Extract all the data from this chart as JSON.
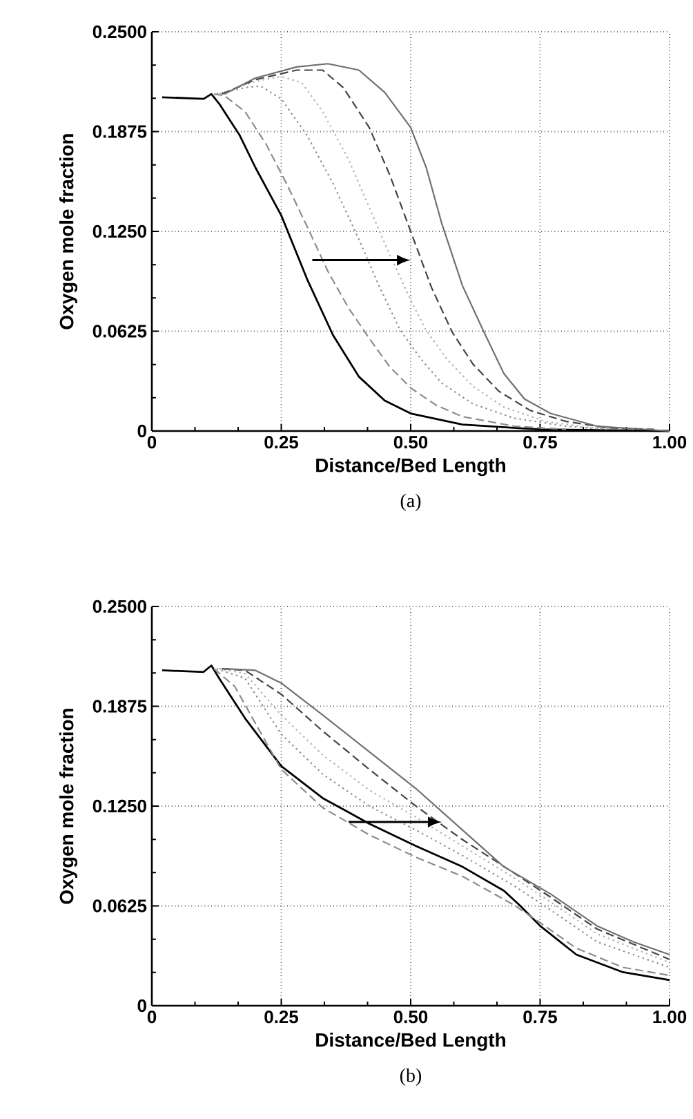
{
  "chart_data": [
    {
      "type": "line",
      "xlabel": "Distance/Bed Length",
      "ylabel": "Oxygen mole fraction",
      "annotations": [
        "(a)"
      ],
      "xlim": [
        0,
        1
      ],
      "ylim": [
        0,
        0.25
      ],
      "xticks": [
        0,
        {
          "value": 0.25,
          "label": "0.25"
        },
        {
          "value": 0.5,
          "label": "0.50"
        },
        {
          "value": 0.75,
          "label": "0.75"
        },
        {
          "value": 1,
          "label": "1.00"
        }
      ],
      "yticks": [
        0,
        {
          "value": 0.0625,
          "label": "0.0625"
        },
        {
          "value": 0.125,
          "label": "0.1250"
        },
        {
          "value": 0.1875,
          "label": "0.1875"
        },
        {
          "value": 0.25,
          "label": "0.2500"
        }
      ],
      "grid": true,
      "marker": "none",
      "series": [
        {
          "color": "#000000",
          "line_style": "solid",
          "x": [
            0.02,
            0.1,
            0.115,
            0.13,
            0.17,
            0.2,
            0.25,
            0.3,
            0.35,
            0.4,
            0.45,
            0.5,
            0.6,
            0.75,
            1.0
          ],
          "values": [
            0.209,
            0.208,
            0.211,
            0.205,
            0.185,
            0.165,
            0.135,
            0.095,
            0.06,
            0.034,
            0.019,
            0.011,
            0.004,
            0.001,
            0
          ]
        },
        {
          "color": "#8c8c8c",
          "line_style": "dashed",
          "x": [
            0.12,
            0.14,
            0.18,
            0.22,
            0.26,
            0.3,
            0.34,
            0.38,
            0.42,
            0.46,
            0.5,
            0.55,
            0.6,
            0.7,
            0.8
          ],
          "values": [
            0.211,
            0.21,
            0.2,
            0.18,
            0.155,
            0.128,
            0.1,
            0.077,
            0.058,
            0.04,
            0.027,
            0.016,
            0.009,
            0.003,
            0.001
          ]
        },
        {
          "color": "#8c8c8c",
          "line_style": "dotted",
          "x": [
            0.125,
            0.18,
            0.21,
            0.25,
            0.3,
            0.35,
            0.4,
            0.44,
            0.48,
            0.52,
            0.56,
            0.62,
            0.7,
            0.8,
            0.88
          ],
          "values": [
            0.211,
            0.215,
            0.216,
            0.208,
            0.185,
            0.155,
            0.12,
            0.09,
            0.063,
            0.045,
            0.03,
            0.017,
            0.008,
            0.003,
            0.001
          ]
        },
        {
          "color": "#b0b0b0",
          "line_style": "dotted",
          "x": [
            0.13,
            0.2,
            0.25,
            0.29,
            0.33,
            0.38,
            0.42,
            0.46,
            0.5,
            0.53,
            0.57,
            0.62,
            0.68,
            0.76,
            0.85,
            0.94
          ],
          "values": [
            0.211,
            0.219,
            0.222,
            0.218,
            0.2,
            0.17,
            0.14,
            0.11,
            0.082,
            0.063,
            0.045,
            0.028,
            0.015,
            0.006,
            0.002,
            0.001
          ]
        },
        {
          "color": "#444444",
          "line_style": "dashed",
          "x": [
            0.135,
            0.2,
            0.28,
            0.33,
            0.37,
            0.42,
            0.46,
            0.5,
            0.54,
            0.58,
            0.62,
            0.67,
            0.73,
            0.8,
            0.88,
            0.97
          ],
          "values": [
            0.211,
            0.22,
            0.226,
            0.226,
            0.215,
            0.19,
            0.16,
            0.125,
            0.09,
            0.062,
            0.042,
            0.025,
            0.013,
            0.006,
            0.002,
            0.001
          ]
        },
        {
          "color": "#707070",
          "line_style": "solid",
          "x": [
            0.14,
            0.2,
            0.28,
            0.34,
            0.4,
            0.45,
            0.5,
            0.53,
            0.56,
            0.6,
            0.64,
            0.68,
            0.72,
            0.77,
            0.86,
            1.0
          ],
          "values": [
            0.211,
            0.221,
            0.228,
            0.23,
            0.226,
            0.212,
            0.19,
            0.165,
            0.13,
            0.091,
            0.063,
            0.036,
            0.02,
            0.011,
            0.003,
            0
          ]
        }
      ]
    },
    {
      "type": "line",
      "xlabel": "Distance/Bed Length",
      "ylabel": "Oxygen mole fraction",
      "annotations": [
        "(b)"
      ],
      "xlim": [
        0,
        1
      ],
      "ylim": [
        0,
        0.25
      ],
      "xticks": [
        0,
        {
          "value": 0.25,
          "label": "0.25"
        },
        {
          "value": 0.5,
          "label": "0.50"
        },
        {
          "value": 0.75,
          "label": "0.75"
        },
        {
          "value": 1,
          "label": "1.00"
        }
      ],
      "yticks": [
        0,
        {
          "value": 0.0625,
          "label": "0.0625"
        },
        {
          "value": 0.125,
          "label": "0.1250"
        },
        {
          "value": 0.1875,
          "label": "0.1875"
        },
        {
          "value": 0.25,
          "label": "0.2500"
        }
      ],
      "grid": true,
      "marker": "none",
      "series": [
        {
          "color": "#000000",
          "line_style": "solid",
          "x": [
            0.02,
            0.1,
            0.115,
            0.13,
            0.18,
            0.25,
            0.33,
            0.42,
            0.51,
            0.6,
            0.68,
            0.71,
            0.75,
            0.82,
            0.91,
            1.0
          ],
          "values": [
            0.21,
            0.209,
            0.213,
            0.205,
            0.18,
            0.15,
            0.13,
            0.114,
            0.1,
            0.087,
            0.072,
            0.063,
            0.05,
            0.032,
            0.021,
            0.016
          ]
        },
        {
          "color": "#8c8c8c",
          "line_style": "dashed",
          "x": [
            0.12,
            0.16,
            0.25,
            0.33,
            0.42,
            0.51,
            0.6,
            0.7,
            0.75,
            0.82,
            0.91,
            1.0
          ],
          "values": [
            0.211,
            0.2,
            0.148,
            0.124,
            0.107,
            0.093,
            0.081,
            0.063,
            0.052,
            0.036,
            0.024,
            0.019
          ]
        },
        {
          "color": "#8c8c8c",
          "line_style": "dotted",
          "x": [
            0.125,
            0.18,
            0.25,
            0.33,
            0.42,
            0.51,
            0.6,
            0.7,
            0.77,
            0.86,
            1.0
          ],
          "values": [
            0.211,
            0.205,
            0.17,
            0.145,
            0.125,
            0.11,
            0.094,
            0.075,
            0.06,
            0.04,
            0.024
          ]
        },
        {
          "color": "#b0b0b0",
          "line_style": "dotted",
          "x": [
            0.13,
            0.18,
            0.25,
            0.33,
            0.42,
            0.51,
            0.6,
            0.7,
            0.77,
            0.86,
            1.0
          ],
          "values": [
            0.211,
            0.208,
            0.182,
            0.157,
            0.135,
            0.118,
            0.1,
            0.08,
            0.065,
            0.045,
            0.027
          ]
        },
        {
          "color": "#444444",
          "line_style": "dashed",
          "x": [
            0.135,
            0.18,
            0.25,
            0.33,
            0.42,
            0.51,
            0.6,
            0.7,
            0.77,
            0.86,
            1.0
          ],
          "values": [
            0.211,
            0.21,
            0.195,
            0.172,
            0.148,
            0.125,
            0.104,
            0.083,
            0.068,
            0.048,
            0.029
          ]
        },
        {
          "color": "#707070",
          "line_style": "solid",
          "x": [
            0.14,
            0.2,
            0.25,
            0.33,
            0.42,
            0.51,
            0.6,
            0.68,
            0.77,
            0.86,
            0.93,
            1.0
          ],
          "values": [
            0.211,
            0.21,
            0.202,
            0.182,
            0.159,
            0.136,
            0.11,
            0.087,
            0.07,
            0.05,
            0.04,
            0.032
          ]
        }
      ]
    }
  ]
}
